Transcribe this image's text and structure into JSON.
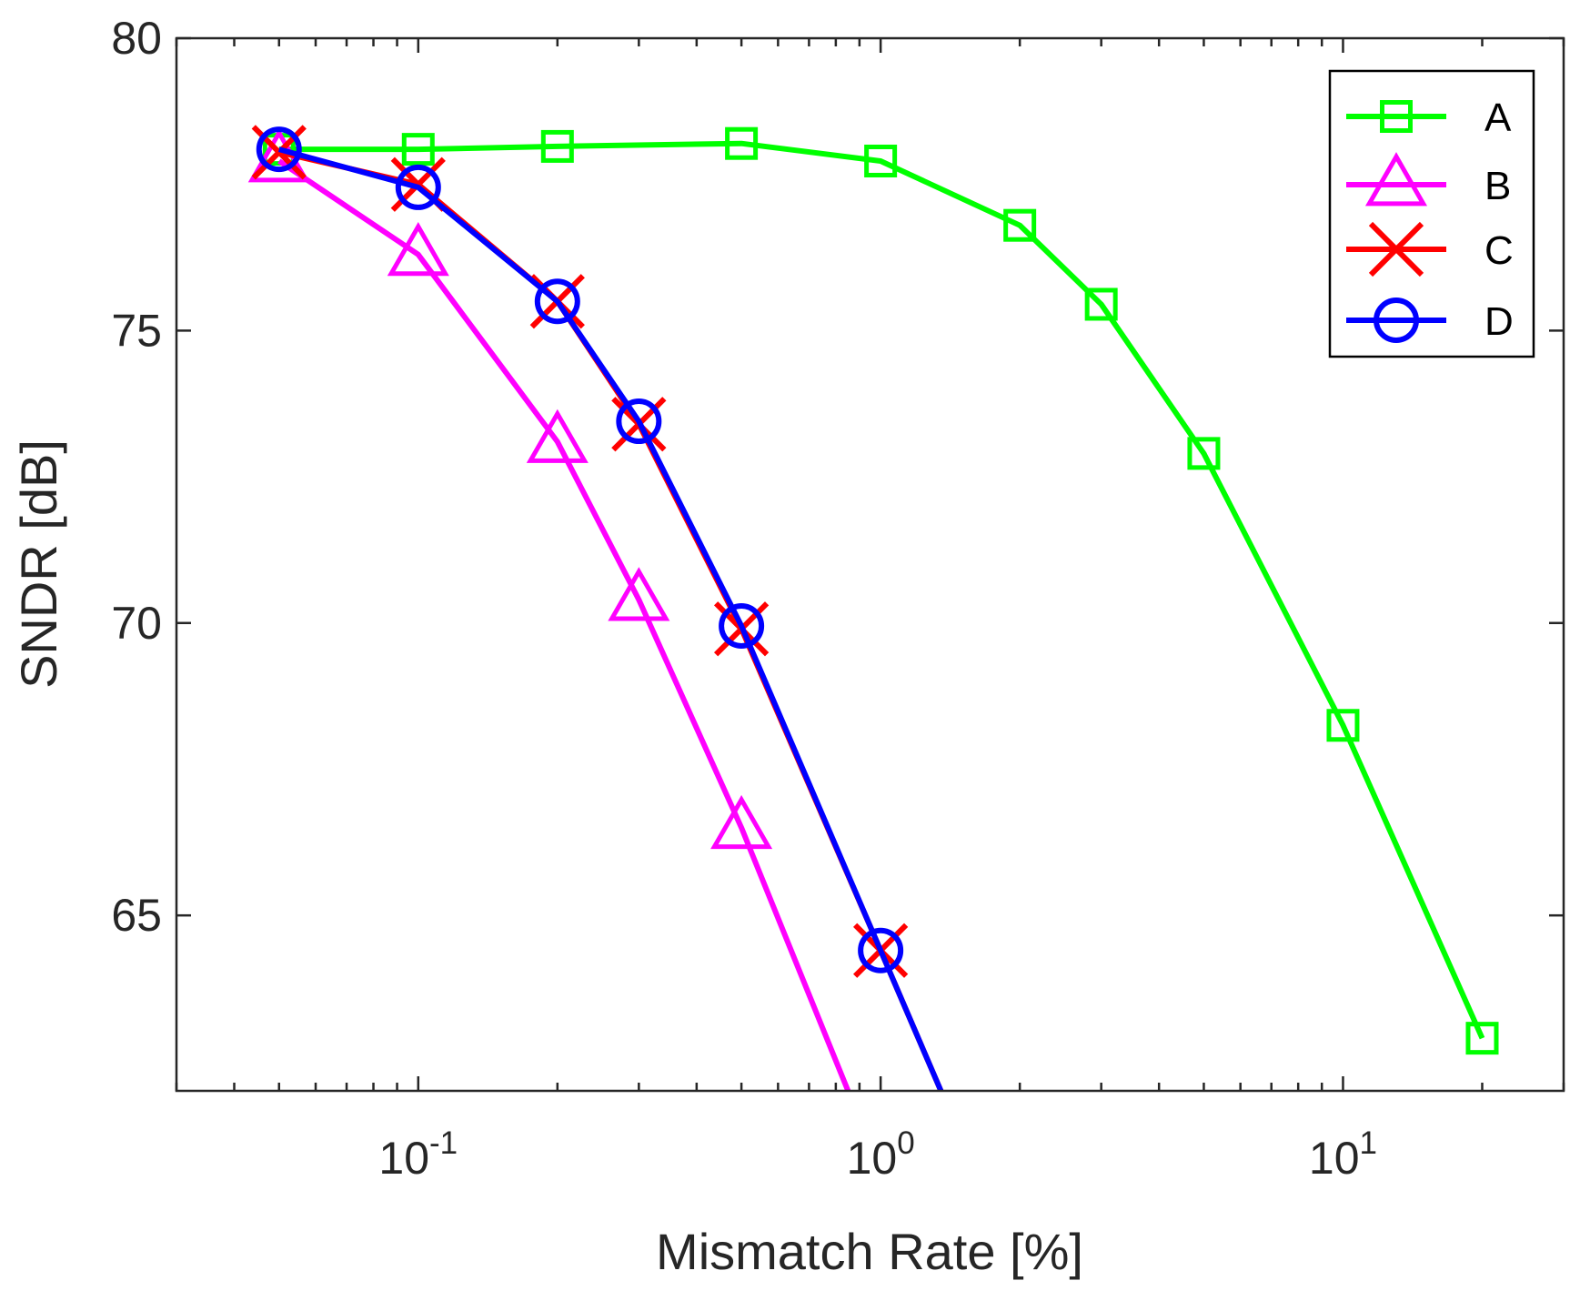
{
  "chart_data": {
    "type": "line",
    "title": "",
    "xlabel": "Mismatch Rate [%]",
    "ylabel": "SNDR [dB]",
    "xscale": "log",
    "xlim": [
      0.03,
      30
    ],
    "ylim": [
      62,
      80
    ],
    "yticks": [
      {
        "value": 65,
        "label": "65"
      },
      {
        "value": 70,
        "label": "70"
      },
      {
        "value": 75,
        "label": "75"
      },
      {
        "value": 80,
        "label": "80"
      }
    ],
    "xticks": [
      {
        "value": 0.1,
        "base": "10",
        "exp": "-1"
      },
      {
        "value": 1,
        "base": "10",
        "exp": "0"
      },
      {
        "value": 10,
        "base": "10",
        "exp": "1"
      }
    ],
    "grid": false,
    "legend_position": "top-right",
    "series": [
      {
        "name": "A",
        "color": "#00ff00",
        "marker": "square",
        "x": [
          0.05,
          0.1,
          0.2,
          0.5,
          1,
          2,
          3,
          5,
          10,
          20
        ],
        "y": [
          78.1,
          78.1,
          78.15,
          78.2,
          77.9,
          76.8,
          75.45,
          72.9,
          68.25,
          62.9
        ]
      },
      {
        "name": "B",
        "color": "#ff00ff",
        "marker": "triangle",
        "x": [
          0.05,
          0.1,
          0.2,
          0.3,
          0.5,
          0.85
        ],
        "y": [
          77.9,
          76.3,
          73.1,
          70.4,
          66.5,
          62.0
        ]
      },
      {
        "name": "C",
        "color": "#ff0000",
        "marker": "x",
        "x": [
          0.05,
          0.1,
          0.2,
          0.3,
          0.5,
          1,
          1.35
        ],
        "y": [
          78.05,
          77.5,
          75.5,
          73.4,
          69.9,
          64.4,
          62.0
        ]
      },
      {
        "name": "D",
        "color": "#0000ff",
        "marker": "circle",
        "x": [
          0.05,
          0.1,
          0.2,
          0.3,
          0.5,
          1,
          1.35
        ],
        "y": [
          78.1,
          77.45,
          75.5,
          73.45,
          69.95,
          64.4,
          62.0
        ]
      }
    ],
    "marker_points": {
      "A": 10,
      "B": 5,
      "C": 6,
      "D": 6
    }
  }
}
